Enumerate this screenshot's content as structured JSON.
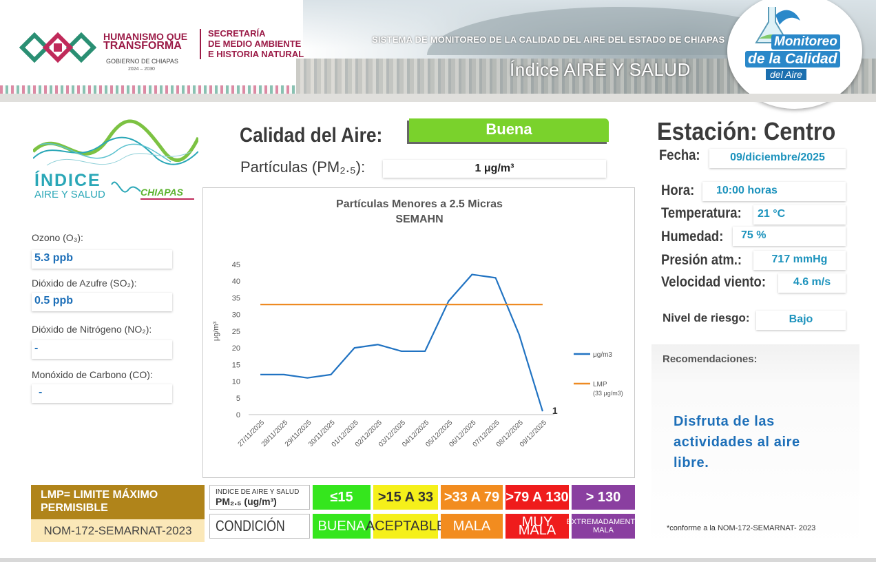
{
  "header": {
    "brand_line1": "HUMANISMO QUE",
    "brand_line2": "TRANSFORMA",
    "brand_gobierno": "GOBIERNO DE CHIAPAS",
    "brand_years": "2024 – 2030",
    "secretaria_line1": "SECRETARÍA",
    "secretaria_line2": "DE MEDIO AMBIENTE",
    "secretaria_line3": "E HISTORIA NATURAL",
    "sistema": "SISTEMA DE MONITOREO DE LA CALIDAD DEL AIRE DEL ESTADO DE CHIAPAS",
    "indice_title": "Índice AIRE Y SALUD",
    "badge_line1": "Monitoreo",
    "badge_line2": "de la Calidad",
    "badge_line3": "del Aire"
  },
  "left": {
    "logo_word": "ÍNDICE",
    "logo_sub": "AIRE Y SALUD",
    "logo_chiapas": "CHIAPAS",
    "ozono_label": "Ozono (O₃):",
    "ozono_value": "5.3 ppb",
    "so2_label": "Dióxido de Azufre  (SO₂):",
    "so2_value": "0.5 ppb",
    "no2_label": "Dióxido de Nitrógeno (NO₂):",
    "no2_value": "-",
    "co_label": "Monóxido de Carbono  (CO):",
    "co_value": "-"
  },
  "center": {
    "calidad_label": "Calidad del Aire:",
    "calidad_value": "Buena",
    "calidad_color": "#7ad22c",
    "pm_label": "Partículas (PM₂.₅):",
    "pm_value": "1 μg/m³"
  },
  "right": {
    "estacion": "Estación: Centro",
    "fecha_label": "Fecha:",
    "fecha_value": "09/diciembre/2025",
    "hora_label": "Hora:",
    "hora_value": "10:00 horas",
    "temp_label": "Temperatura:",
    "temp_value": "21 °C",
    "hum_label": "Humedad:",
    "hum_value": "75 %",
    "pres_label": "Presión atm.:",
    "pres_value": "717 mmHg",
    "viento_label": "Velocidad viento:",
    "viento_value": "4.6 m/s",
    "riesgo_label": "Nivel de riesgo:",
    "riesgo_value": "Bajo",
    "reco_label": "Recomendaciones:",
    "reco_text": "Disfruta de las actividades al aire libre.",
    "nom_note": "*conforme a la NOM-172-SEMARNAT- 2023"
  },
  "legend": {
    "lmp_text": "LMP= LIMITE MÁXIMO PERMISIBLE",
    "nom_text": "NOM-172-SEMARNAT-2023",
    "hdr_line1": "INDICE DE AIRE Y SALUD",
    "hdr_line2": "PM₂.₅ (ug/m³)",
    "condicion": "CONDICIÓN",
    "ranges": [
      "≤15",
      ">15 A 33",
      ">33 A 79",
      ">79 A 130",
      "> 130"
    ],
    "conditions": [
      "BUENA",
      "ACEPTABLE",
      "MALA",
      "MUY MALA",
      "EXTREMADAMENTE MALA"
    ],
    "colors": [
      "#35e61d",
      "#f5f01a",
      "#f28c1f",
      "#ef1c1c",
      "#8a3fa0"
    ],
    "text_colors": [
      "#ffffff",
      "#333333",
      "#ffffff",
      "#ffffff",
      "#ffffff"
    ]
  },
  "chart_data": {
    "type": "line",
    "title": "Partículas Menores a 2.5 Micras",
    "subtitle": "SEMAHN",
    "ylabel": "μg/m³",
    "xlabel": "",
    "ylim": [
      0,
      45
    ],
    "yticks": [
      0,
      5,
      10,
      15,
      20,
      25,
      30,
      35,
      40,
      45
    ],
    "categories": [
      "27/11/2025",
      "28/11/2025",
      "29/11/2025",
      "30/11/2025",
      "01/12/2025",
      "02/12/2025",
      "03/12/2025",
      "04/12/2025",
      "05/12/2025",
      "06/12/2025",
      "07/12/2025",
      "08/12/2025",
      "09/12/2025"
    ],
    "series": [
      {
        "name": "μg/m3",
        "color": "#2173c2",
        "values": [
          12,
          12,
          11,
          12,
          20,
          21,
          19,
          19,
          34,
          42,
          41,
          24,
          1
        ]
      },
      {
        "name": "LMP",
        "name_sub": "(33 μg/m3)",
        "color": "#ee8a22",
        "values": [
          33,
          33,
          33,
          33,
          33,
          33,
          33,
          33,
          33,
          33,
          33,
          33,
          33
        ]
      }
    ],
    "last_label": "1",
    "grid": false,
    "legend_position": "right"
  }
}
